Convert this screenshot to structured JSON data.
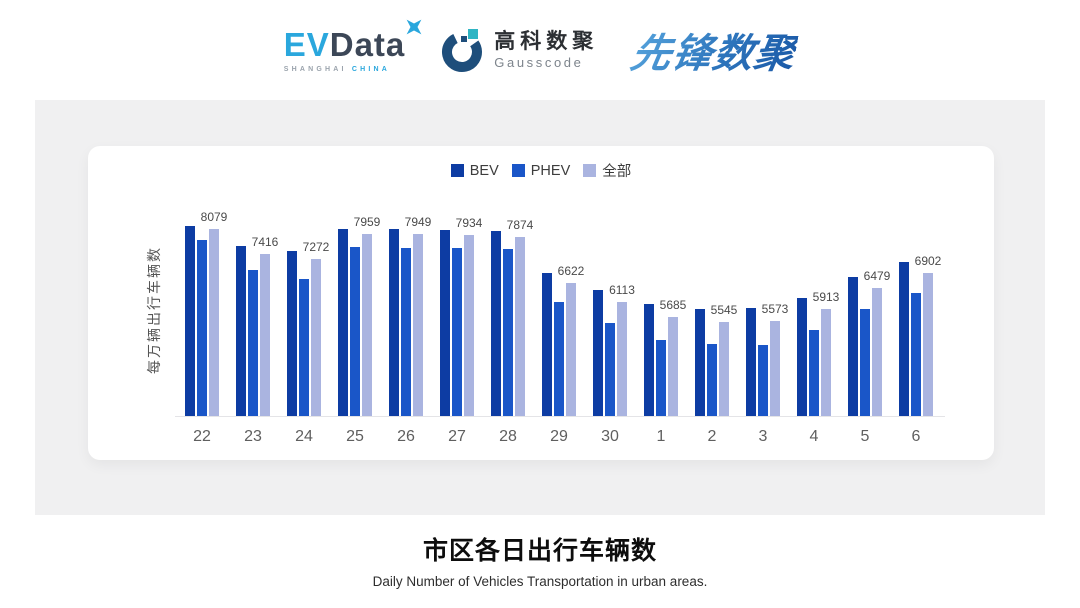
{
  "header": {
    "evdata": {
      "part1": "EV",
      "part2": "Data",
      "sub1": "SHANGHAI",
      "sub2": "CHINA",
      "blue": "#2aa7dd",
      "dark": "#3c4757"
    },
    "gausscode": {
      "cn": "高科数聚",
      "en": "Gausscode",
      "mark_blue": "#1e4e7b",
      "mark_teal": "#2fb5c4"
    },
    "pioneer": {
      "text": "先锋数聚",
      "blue": "#2e76bd"
    }
  },
  "chart_data": {
    "type": "bar",
    "title": "",
    "ylabel": "每万辆出行车辆数",
    "xlabel": "",
    "categories": [
      "22",
      "23",
      "24",
      "25",
      "26",
      "27",
      "28",
      "29",
      "30",
      "1",
      "2",
      "3",
      "4",
      "5",
      "6"
    ],
    "series": [
      {
        "key": "bev",
        "name": "BEV",
        "color": "#0d3ca3",
        "values": [
          8170,
          7630,
          7500,
          8100,
          8080,
          8070,
          8020,
          6900,
          6430,
          6060,
          5910,
          5940,
          6220,
          6780,
          7200
        ]
      },
      {
        "key": "phev",
        "name": "PHEV",
        "color": "#1a56c8",
        "values": [
          7780,
          6960,
          6740,
          7590,
          7580,
          7560,
          7540,
          6090,
          5520,
          5070,
          4950,
          4930,
          5340,
          5910,
          6360
        ]
      },
      {
        "key": "all",
        "name": "全部",
        "color": "#aab4e0",
        "labels_shown": true,
        "values": [
          8079,
          7416,
          7272,
          7959,
          7949,
          7934,
          7874,
          6622,
          6113,
          5685,
          5545,
          5573,
          5913,
          6479,
          6902
        ]
      }
    ],
    "ylim": [
      3000,
      8500
    ],
    "grid": false,
    "legend_position": "top",
    "notes": "data labels shown on 全部 series only; BEV/PHEV values estimated from bar heights"
  },
  "footer": {
    "title": "市区各日出行车辆数",
    "subtitle": "Daily Number of Vehicles Transportation in urban areas."
  }
}
